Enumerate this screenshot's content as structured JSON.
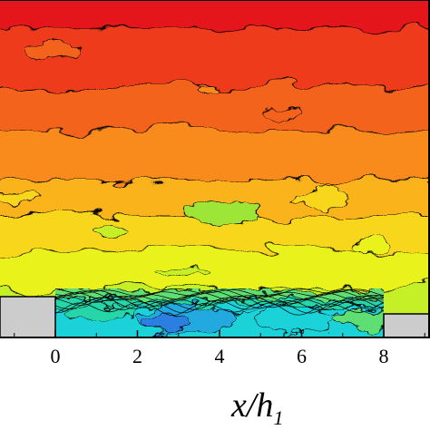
{
  "chart_data": {
    "type": "heatmap",
    "description_type": "filled contour plot",
    "xlabel_main": "x/h",
    "xlabel_sub": "1",
    "x_ticks": [
      "0",
      "2",
      "4",
      "6",
      "8"
    ],
    "x_tick_values": [
      0,
      2,
      4,
      6,
      8
    ],
    "xlim": [
      -2.7,
      9.1
    ],
    "step_blocks": [
      {
        "name": "upstream-step",
        "x_range": [
          -2.7,
          0
        ],
        "color": "#cccccc"
      },
      {
        "name": "downstream-step",
        "x_range": [
          8.0,
          9.1
        ],
        "color": "#cccccc"
      }
    ],
    "colormap": [
      "#e4151b",
      "#ee3a1a",
      "#f4631b",
      "#f98a1c",
      "#fbb31d",
      "#f7d61d",
      "#eaf21a",
      "#c5ef26",
      "#9de637",
      "#5ede73",
      "#25d6a8",
      "#1bd2d9",
      "#24a9e0",
      "#2a7fe0"
    ],
    "level_fields": [
      {
        "y_range": [
          0.0,
          0.1
        ],
        "level": 0
      },
      {
        "y_range": [
          0.1,
          0.27
        ],
        "level": 1
      },
      {
        "y_range": [
          0.27,
          0.4
        ],
        "level": 2
      },
      {
        "y_range": [
          0.4,
          0.55
        ],
        "level": 3
      },
      {
        "y_range": [
          0.55,
          0.66
        ],
        "level": 4
      },
      {
        "y_range": [
          0.66,
          0.76
        ],
        "level": 5
      },
      {
        "y_range": [
          0.76,
          0.87
        ],
        "level": 6
      },
      {
        "y_range": [
          0.87,
          1.0
        ],
        "level": 7
      }
    ],
    "recirculation_zone": {
      "x_range": [
        0,
        8
      ],
      "min_level": 13,
      "max_level": 8
    },
    "grid": false,
    "legend": "none"
  }
}
